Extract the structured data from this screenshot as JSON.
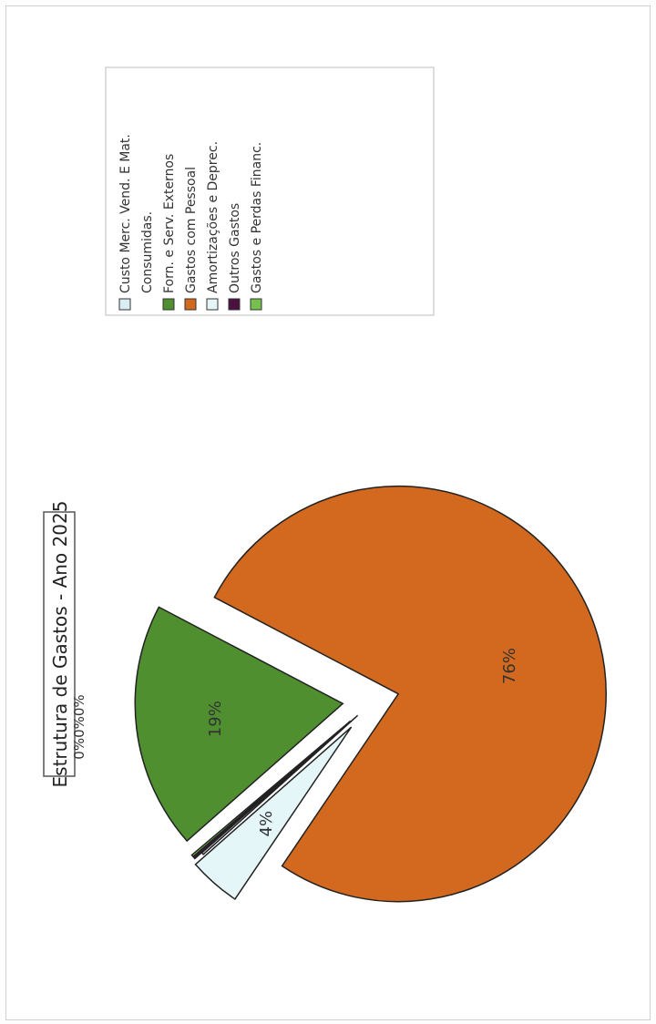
{
  "chart_data": {
    "type": "pie",
    "title": "Estrutura de Gastos - Ano 2025",
    "exploded": true,
    "rotated_page": true,
    "slices": [
      {
        "label": "Custo Merc. Vend. E Mat. Consumidas.",
        "value": 0,
        "display": "0%",
        "color": "#d9eef3"
      },
      {
        "label": "Forn. e Serv. Externos",
        "value": 19,
        "display": "19%",
        "color": "#4f8f2f"
      },
      {
        "label": "Gastos com Pessoal",
        "value": 76,
        "display": "76%",
        "color": "#d2691e"
      },
      {
        "label": "Amortizações e Deprec.",
        "value": 4,
        "display": "4%",
        "color": "#e4f6f8"
      },
      {
        "label": "Outros Gastos",
        "value": 0,
        "display": "0%",
        "color": "#4a1040"
      },
      {
        "label": "Gastos e Perdas Financ.",
        "value": 0,
        "display": "0%",
        "color": "#76c050"
      }
    ],
    "small_labels_text": "0%0%0%",
    "legend": {
      "position": "right",
      "entries": [
        {
          "lines": [
            "Custo Merc. Vend. E Mat.",
            "Consumidas."
          ],
          "color": "#d9eef3"
        },
        {
          "lines": [
            "Forn. e Serv. Externos"
          ],
          "color": "#4f8f2f"
        },
        {
          "lines": [
            "Gastos com Pessoal"
          ],
          "color": "#d2691e"
        },
        {
          "lines": [
            "Amortizações e Deprec."
          ],
          "color": "#e4f6f8"
        },
        {
          "lines": [
            "Outros Gastos"
          ],
          "color": "#4a1040"
        },
        {
          "lines": [
            "Gastos e Perdas Financ."
          ],
          "color": "#76c050"
        }
      ]
    }
  }
}
